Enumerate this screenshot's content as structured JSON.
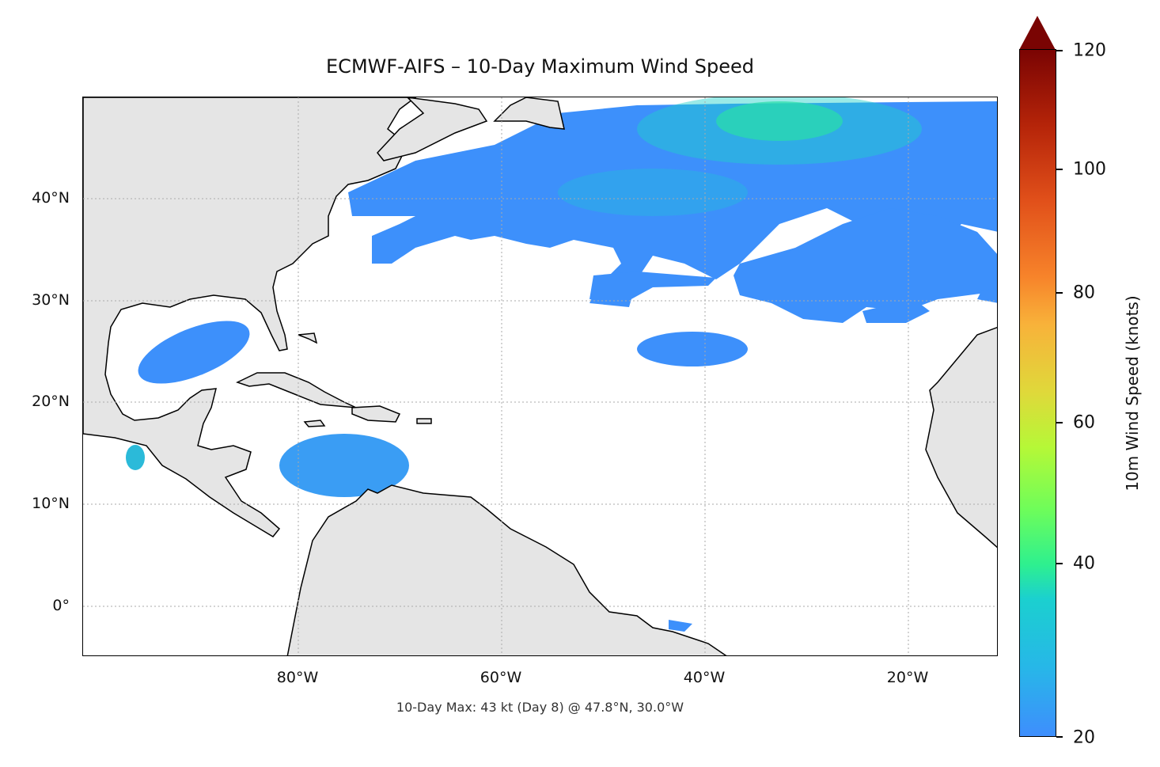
{
  "title": "ECMWF-AIFS – 10-Day Maximum Wind Speed",
  "footer": "10-Day Max: 43 kt (Day 8) @ 47.8°N, 30.0°W",
  "map": {
    "extent": {
      "lon": [
        -100,
        -11
      ],
      "lat": [
        -5,
        50
      ]
    },
    "lat_ticks": [
      "40°N",
      "30°N",
      "20°N",
      "10°N",
      "0°"
    ],
    "lon_ticks": [
      "80°W",
      "60°W",
      "40°W",
      "20°W"
    ],
    "gridlines": true,
    "land_color": "#e5e5e5",
    "max_point": {
      "lat": 47.8,
      "lon": -30.0,
      "value_kt": 43,
      "day": 8
    }
  },
  "colorbar": {
    "label": "10m Wind Speed (knots)",
    "ticks": [
      "20",
      "40",
      "60",
      "80",
      "100",
      "120"
    ],
    "min": 20,
    "max": 120,
    "extend": "max",
    "colormap": "turbo"
  }
}
